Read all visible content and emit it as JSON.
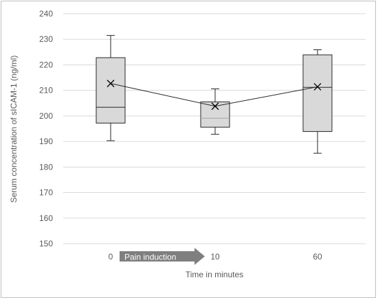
{
  "chart_data": {
    "type": "box",
    "categories": [
      "0",
      "10",
      "60"
    ],
    "boxes": [
      {
        "category": "0",
        "min": 190.3,
        "q1": 197.2,
        "median": 203.4,
        "q3": 222.8,
        "max": 231.5,
        "mean": 212.7
      },
      {
        "category": "10",
        "min": 192.8,
        "q1": 195.6,
        "median": 199.1,
        "q3": 205.5,
        "max": 210.6,
        "mean": 203.8
      },
      {
        "category": "60",
        "min": 185.4,
        "q1": 193.9,
        "median": 211.2,
        "q3": 223.9,
        "max": 225.9,
        "mean": 211.4
      }
    ],
    "mean_line": true,
    "ylabel": "Serum concentration of sICAM-1 (ng/ml)",
    "xlabel": "Time in minutes",
    "ylim": [
      150,
      240
    ],
    "yticks": [
      150,
      160,
      170,
      180,
      190,
      200,
      210,
      220,
      230,
      240
    ],
    "grid": true,
    "annotation": "Pain induction",
    "colors": {
      "box_fill": "#d9d9d9",
      "box_stroke": "#262626",
      "grid": "#d9d9d9",
      "arrow": "#7f7f7f"
    }
  }
}
